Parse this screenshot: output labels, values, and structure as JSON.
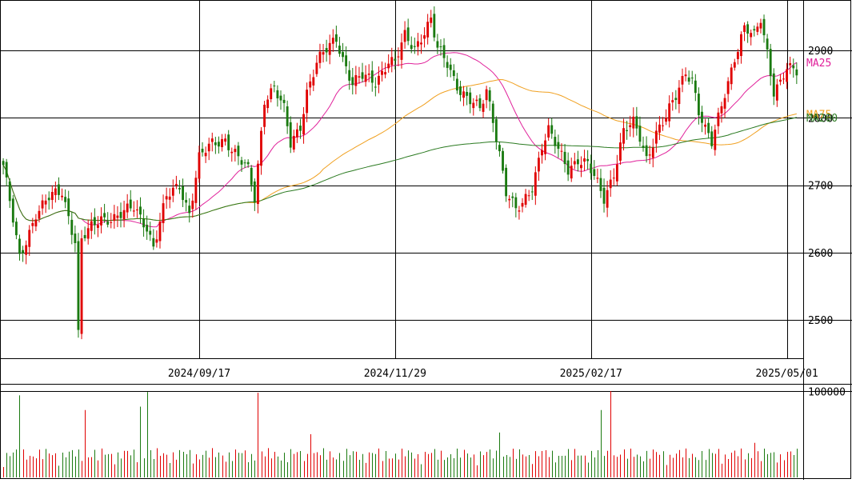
{
  "chart_data": {
    "type": "candlestick",
    "price_ticks": [
      2500,
      2600,
      2700,
      2800,
      2900
    ],
    "price_ylim": [
      2443,
      2975
    ],
    "date_ticks": [
      {
        "label": "2024/09/17",
        "index": 60
      },
      {
        "label": "2024/11/29",
        "index": 120
      },
      {
        "label": "2025/02/17",
        "index": 180
      },
      {
        "label": "2025/05/01",
        "index": 240
      }
    ],
    "volume_tick": {
      "label": "100000",
      "value": 100000
    },
    "volume_ylim": [
      0,
      100000
    ],
    "series": [
      {
        "name": "MA25",
        "color": "#e0209a"
      },
      {
        "name": "MA75",
        "color": "#f0a020"
      },
      {
        "name": "MA200",
        "color": "#2a7a20"
      }
    ],
    "colors": {
      "up": "#e00000",
      "down": "#1a7a10",
      "grid": "#000000"
    },
    "ohlc_waypoints": [
      [
        0,
        2730
      ],
      [
        5,
        2590
      ],
      [
        10,
        2660
      ],
      [
        14,
        2680
      ],
      [
        18,
        2690
      ],
      [
        22,
        2620
      ],
      [
        23,
        2480
      ],
      [
        24,
        2620
      ],
      [
        30,
        2650
      ],
      [
        35,
        2655
      ],
      [
        40,
        2665
      ],
      [
        44,
        2640
      ],
      [
        46,
        2610
      ],
      [
        50,
        2680
      ],
      [
        54,
        2700
      ],
      [
        57,
        2660
      ],
      [
        60,
        2740
      ],
      [
        64,
        2760
      ],
      [
        68,
        2770
      ],
      [
        72,
        2740
      ],
      [
        75,
        2720
      ],
      [
        77,
        2680
      ],
      [
        80,
        2830
      ],
      [
        83,
        2845
      ],
      [
        86,
        2810
      ],
      [
        88,
        2760
      ],
      [
        91,
        2790
      ],
      [
        93,
        2840
      ],
      [
        96,
        2880
      ],
      [
        99,
        2900
      ],
      [
        102,
        2920
      ],
      [
        104,
        2890
      ],
      [
        107,
        2850
      ],
      [
        110,
        2860
      ],
      [
        114,
        2855
      ],
      [
        118,
        2885
      ],
      [
        120,
        2880
      ],
      [
        123,
        2920
      ],
      [
        126,
        2905
      ],
      [
        129,
        2930
      ],
      [
        131,
        2945
      ],
      [
        133,
        2900
      ],
      [
        136,
        2880
      ],
      [
        139,
        2850
      ],
      [
        142,
        2830
      ],
      [
        146,
        2810
      ],
      [
        148,
        2840
      ],
      [
        150,
        2800
      ],
      [
        152,
        2750
      ],
      [
        154,
        2690
      ],
      [
        157,
        2660
      ],
      [
        159,
        2670
      ],
      [
        162,
        2700
      ],
      [
        165,
        2760
      ],
      [
        167,
        2780
      ],
      [
        170,
        2750
      ],
      [
        173,
        2725
      ],
      [
        176,
        2740
      ],
      [
        179,
        2730
      ],
      [
        182,
        2700
      ],
      [
        184,
        2680
      ],
      [
        187,
        2720
      ],
      [
        190,
        2780
      ],
      [
        193,
        2790
      ],
      [
        195,
        2770
      ],
      [
        197,
        2740
      ],
      [
        200,
        2780
      ],
      [
        203,
        2800
      ],
      [
        206,
        2830
      ],
      [
        209,
        2870
      ],
      [
        211,
        2860
      ],
      [
        213,
        2810
      ],
      [
        215,
        2780
      ],
      [
        217,
        2760
      ],
      [
        219,
        2800
      ],
      [
        221,
        2840
      ],
      [
        224,
        2890
      ],
      [
        227,
        2930
      ],
      [
        230,
        2920
      ],
      [
        232,
        2950
      ],
      [
        234,
        2900
      ],
      [
        236,
        2840
      ],
      [
        238,
        2850
      ],
      [
        240,
        2870
      ]
    ],
    "volume_spikes": [
      {
        "index": 5,
        "value": 95000
      },
      {
        "index": 25,
        "value": 78000
      },
      {
        "index": 42,
        "value": 82000
      },
      {
        "index": 44,
        "value": 99000
      },
      {
        "index": 78,
        "value": 98000
      },
      {
        "index": 94,
        "value": 50000
      },
      {
        "index": 152,
        "value": 52000
      },
      {
        "index": 183,
        "value": 78000
      },
      {
        "index": 186,
        "value": 100000
      },
      {
        "index": 219,
        "value": 33000
      },
      {
        "index": 230,
        "value": 40000
      }
    ]
  }
}
